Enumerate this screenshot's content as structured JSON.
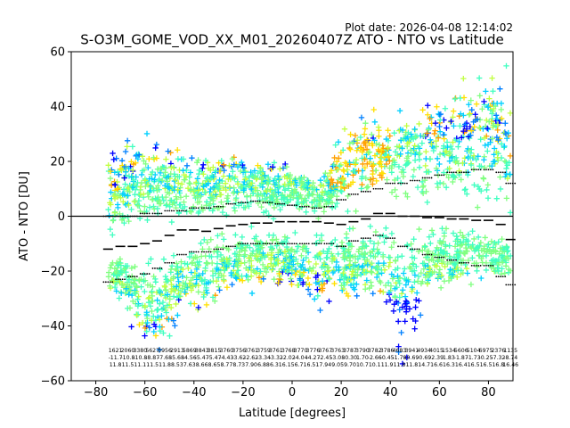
{
  "plot_date": "Plot date: 2026-04-08 12:14:02",
  "chart_data": {
    "type": "scatter",
    "title": "S-O3M_GOME_VOD_XX_M01_20260407Z ATO - NTO vs Latitude",
    "xlabel": "Latitude [degrees]",
    "ylabel": "ATO - NTO [DU]",
    "xlim": [
      -90,
      90
    ],
    "ylim": [
      -60,
      60
    ],
    "xticks": [
      -80,
      -60,
      -40,
      -20,
      0,
      20,
      40,
      60,
      80
    ],
    "yticks": [
      -60,
      -40,
      -20,
      0,
      20,
      40,
      60
    ],
    "grid": false,
    "reference_line_y": 0,
    "marker": "+",
    "point_colors": [
      "#0000ff",
      "#0080ff",
      "#00d0ff",
      "#40ffc0",
      "#80ff80",
      "#c0ff40",
      "#ffe000",
      "#ffa000"
    ],
    "scatter_envelope": {
      "latitude": [
        -70,
        -65,
        -60,
        -55,
        -50,
        -45,
        -40,
        -35,
        -30,
        -25,
        -20,
        -15,
        -10,
        -5,
        0,
        5,
        10,
        15,
        20,
        25,
        30,
        35,
        40,
        45,
        50,
        55,
        60,
        65,
        70,
        75,
        80,
        85,
        89
      ],
      "upper": [
        22,
        30,
        32,
        28,
        26,
        24,
        22,
        22,
        22,
        24,
        24,
        24,
        22,
        20,
        18,
        16,
        14,
        18,
        30,
        36,
        40,
        40,
        38,
        40,
        44,
        45,
        46,
        48,
        50,
        52,
        55,
        56,
        56
      ],
      "lower": [
        -30,
        -40,
        -48,
        -52,
        -44,
        -38,
        -36,
        -34,
        -30,
        -28,
        -28,
        -28,
        -24,
        -28,
        -30,
        -32,
        -34,
        -32,
        -30,
        -30,
        -28,
        -30,
        -40,
        -52,
        -45,
        -28,
        -26,
        -28,
        -26,
        -24,
        -24,
        -24,
        -24
      ]
    },
    "mean_line": {
      "latitude": [
        -75,
        -70,
        -65,
        -60,
        -55,
        -50,
        -45,
        -40,
        -35,
        -30,
        -25,
        -20,
        -15,
        -10,
        -5,
        0,
        5,
        10,
        15,
        20,
        25,
        30,
        35,
        40,
        45,
        50,
        55,
        60,
        65,
        70,
        75,
        80,
        85,
        89
      ],
      "values": [
        -12,
        -11,
        -11,
        -10,
        -9,
        -7,
        -5,
        -5,
        -5.5,
        -4.5,
        -3.5,
        -3,
        -2.5,
        -2.5,
        -2,
        -2,
        -2,
        -2,
        -2.5,
        -3,
        -2,
        -1,
        1,
        1,
        0,
        0,
        -0.5,
        -0.5,
        -1,
        -1,
        -1.5,
        -1.5,
        -3,
        -8.5
      ]
    },
    "upper_stddev": {
      "latitude": [
        -75,
        -70,
        -65,
        -60,
        -55,
        -50,
        -45,
        -40,
        -35,
        -30,
        -25,
        -20,
        -15,
        -10,
        -5,
        0,
        5,
        10,
        15,
        20,
        25,
        30,
        35,
        40,
        45,
        50,
        55,
        60,
        65,
        70,
        75,
        80,
        85,
        89
      ],
      "values": [
        0,
        0,
        0,
        1,
        1,
        2,
        2,
        3,
        3,
        3.5,
        4.5,
        5,
        5.5,
        5,
        4.5,
        4,
        3.5,
        3,
        3.5,
        6,
        8,
        9,
        10,
        12,
        12,
        13,
        14,
        15,
        16,
        16,
        17,
        17,
        16,
        12
      ]
    },
    "lower_stddev": {
      "latitude": [
        -75,
        -70,
        -65,
        -60,
        -55,
        -50,
        -45,
        -40,
        -35,
        -30,
        -25,
        -20,
        -15,
        -10,
        -5,
        0,
        5,
        10,
        15,
        20,
        25,
        30,
        35,
        40,
        45,
        50,
        55,
        60,
        65,
        70,
        75,
        80,
        85,
        89
      ],
      "values": [
        -24,
        -23,
        -22,
        -21,
        -19,
        -17,
        -14,
        -13,
        -13,
        -12,
        -11,
        -10,
        -10,
        -10,
        -10,
        -10,
        -10,
        -10,
        -10,
        -11,
        -9,
        -8,
        -7,
        -8,
        -11,
        -12,
        -14,
        -15,
        -16,
        -17,
        -18,
        -18,
        -22,
        -25
      ]
    },
    "bin_stats": {
      "counts": [
        "1621",
        "2060",
        "3380",
        "5627",
        "3956",
        "2913",
        "5869",
        "3843",
        "3815",
        "3760",
        "3756",
        "3761",
        "3759",
        "3761",
        "3768",
        "3770",
        "3776",
        "3767",
        "3763",
        "3787",
        "3790",
        "3782",
        "3786",
        "4683",
        "3941",
        "4934",
        "4015",
        "1534",
        "5606",
        "5104",
        "6975",
        "2376",
        "1135"
      ],
      "means": [
        "-11.7",
        "-10.8",
        "-10.8",
        "-8.87",
        "-7.68",
        "-5.68",
        "-4.56",
        "-5.47",
        "-5.47",
        "-4.43",
        "-3.62",
        "-2.62",
        "-3.34",
        "-3.32",
        "-2.02",
        "-4.04",
        "-4.27",
        "-2.45",
        "-3.08",
        "-0.30",
        "1.70",
        "-2.66",
        "-0.45",
        "-1.78",
        "-0.69",
        "-0.69",
        "-2.39",
        "1.83",
        "-1.87",
        "-1.73",
        "-0.25",
        "-7.32",
        "-8.74"
      ],
      "sds": [
        "11.8",
        "11.5",
        "11.1",
        "11.5",
        "11.8",
        "8.53",
        "7.63",
        "8.66",
        "8.65",
        "8.77",
        "8.73",
        "7.90",
        "6.88",
        "6.31",
        "6.15",
        "6.71",
        "6.51",
        "7.94",
        "9.05",
        "9.70",
        "10.7",
        "10.1",
        "11.9",
        "11.8",
        "11.8",
        "14.7",
        "16.6",
        "16.3",
        "16.4",
        "16.5",
        "16.5",
        "16.8",
        "16.46"
      ]
    }
  }
}
